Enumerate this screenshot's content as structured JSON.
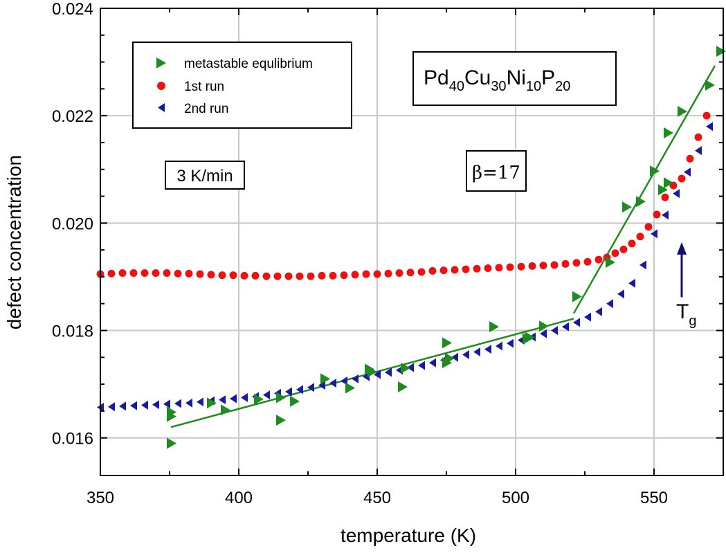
{
  "chart_data": {
    "type": "scatter",
    "title": "",
    "xlabel": "temperature (K)",
    "ylabel": "defect concentration",
    "xlim": [
      350,
      575
    ],
    "ylim": [
      0.0153,
      0.024
    ],
    "x_ticks": [
      350,
      400,
      450,
      500,
      550
    ],
    "x_tick_labels": [
      "350",
      "400",
      "450",
      "500",
      "550"
    ],
    "y_ticks": [
      0.016,
      0.018,
      0.02,
      0.022,
      0.024
    ],
    "y_tick_labels": [
      "0.016",
      "0.018",
      "0.020",
      "0.022",
      "0.024"
    ],
    "grid": true,
    "legend_position": "top-left",
    "colors": {
      "metastable": "#1e8c1e",
      "run1": "#ee1111",
      "run2": "#1a1aa0",
      "tg_arrow": "#12126e"
    },
    "series": [
      {
        "name": "metastable equlibrium",
        "marker": "triangle-right",
        "color": "#1e8c1e",
        "points": [
          [
            375.5,
            0.0159
          ],
          [
            375.5,
            0.0164
          ],
          [
            375.5,
            0.01648
          ],
          [
            390,
            0.01665
          ],
          [
            395,
            0.01652
          ],
          [
            407,
            0.01672
          ],
          [
            415,
            0.01633
          ],
          [
            415,
            0.01675
          ],
          [
            420,
            0.01668
          ],
          [
            431,
            0.0171
          ],
          [
            440,
            0.01693
          ],
          [
            447,
            0.01728
          ],
          [
            448,
            0.01723
          ],
          [
            459,
            0.01695
          ],
          [
            460,
            0.0173
          ],
          [
            475,
            0.0174
          ],
          [
            475,
            0.01777
          ],
          [
            476,
            0.01748
          ],
          [
            492,
            0.01807
          ],
          [
            504,
            0.01785
          ],
          [
            505,
            0.01787
          ],
          [
            510,
            0.01808
          ],
          [
            522,
            0.01863
          ],
          [
            534,
            0.01927
          ],
          [
            540,
            0.0203
          ],
          [
            545,
            0.0204
          ],
          [
            550,
            0.02097
          ],
          [
            553,
            0.02062
          ],
          [
            555,
            0.02075
          ],
          [
            555,
            0.02168
          ],
          [
            560,
            0.02208
          ],
          [
            570,
            0.02257
          ],
          [
            574,
            0.0232
          ]
        ],
        "fit_lines": [
          {
            "from": [
              375.5,
              0.0162
            ],
            "to": [
              521,
              0.01822
            ]
          },
          {
            "from": [
              521,
              0.01832
            ],
            "to": [
              572,
              0.02293
            ]
          }
        ]
      },
      {
        "name": "1st run",
        "marker": "circle",
        "color": "#ee1111",
        "points": [
          [
            350,
            0.01905
          ],
          [
            354,
            0.01906
          ],
          [
            358,
            0.01907
          ],
          [
            362,
            0.01907
          ],
          [
            366,
            0.01907
          ],
          [
            370,
            0.01907
          ],
          [
            374,
            0.01907
          ],
          [
            378,
            0.01906
          ],
          [
            382,
            0.01906
          ],
          [
            386,
            0.01905
          ],
          [
            390,
            0.01904
          ],
          [
            394,
            0.01903
          ],
          [
            398,
            0.01903
          ],
          [
            402,
            0.01902
          ],
          [
            406,
            0.01902
          ],
          [
            410,
            0.01901
          ],
          [
            414,
            0.01901
          ],
          [
            418,
            0.01901
          ],
          [
            422,
            0.01901
          ],
          [
            426,
            0.01901
          ],
          [
            430,
            0.01902
          ],
          [
            434,
            0.01902
          ],
          [
            438,
            0.01903
          ],
          [
            442,
            0.01904
          ],
          [
            446,
            0.01905
          ],
          [
            450,
            0.01905
          ],
          [
            454,
            0.01906
          ],
          [
            458,
            0.01907
          ],
          [
            462,
            0.01908
          ],
          [
            466,
            0.01909
          ],
          [
            470,
            0.01911
          ],
          [
            474,
            0.01912
          ],
          [
            478,
            0.01913
          ],
          [
            482,
            0.01914
          ],
          [
            486,
            0.01915
          ],
          [
            490,
            0.01916
          ],
          [
            494,
            0.01917
          ],
          [
            498,
            0.01918
          ],
          [
            502,
            0.01919
          ],
          [
            506,
            0.0192
          ],
          [
            510,
            0.01921
          ],
          [
            514,
            0.01922
          ],
          [
            518,
            0.01924
          ],
          [
            522,
            0.01926
          ],
          [
            526,
            0.01928
          ],
          [
            530,
            0.01932
          ],
          [
            533,
            0.01936
          ],
          [
            536,
            0.01944
          ],
          [
            539,
            0.01951
          ],
          [
            542,
            0.01962
          ],
          [
            545,
            0.01975
          ],
          [
            548,
            0.01993
          ],
          [
            551,
            0.02016
          ],
          [
            554,
            0.02048
          ],
          [
            557,
            0.0207
          ],
          [
            560,
            0.02083
          ],
          [
            563,
            0.0212
          ],
          [
            566,
            0.0216
          ],
          [
            569,
            0.022
          ]
        ]
      },
      {
        "name": "2nd run",
        "marker": "triangle-left",
        "color": "#1a1aa0",
        "points": [
          [
            350,
            0.01657
          ],
          [
            354,
            0.01658
          ],
          [
            358,
            0.01659
          ],
          [
            362,
            0.0166
          ],
          [
            366,
            0.01661
          ],
          [
            370,
            0.01662
          ],
          [
            374,
            0.01663
          ],
          [
            378,
            0.01664
          ],
          [
            382,
            0.01665
          ],
          [
            386,
            0.01667
          ],
          [
            390,
            0.01669
          ],
          [
            394,
            0.01671
          ],
          [
            398,
            0.01673
          ],
          [
            402,
            0.01675
          ],
          [
            406,
            0.01677
          ],
          [
            410,
            0.0168
          ],
          [
            414,
            0.01683
          ],
          [
            418,
            0.01686
          ],
          [
            422,
            0.0169
          ],
          [
            426,
            0.01694
          ],
          [
            430,
            0.01698
          ],
          [
            434,
            0.01702
          ],
          [
            438,
            0.01706
          ],
          [
            442,
            0.0171
          ],
          [
            446,
            0.01714
          ],
          [
            450,
            0.01718
          ],
          [
            454,
            0.01722
          ],
          [
            458,
            0.01726
          ],
          [
            462,
            0.01731
          ],
          [
            466,
            0.01735
          ],
          [
            470,
            0.0174
          ],
          [
            474,
            0.01745
          ],
          [
            478,
            0.0175
          ],
          [
            482,
            0.01755
          ],
          [
            486,
            0.0176
          ],
          [
            490,
            0.01765
          ],
          [
            494,
            0.01771
          ],
          [
            498,
            0.01776
          ],
          [
            502,
            0.01782
          ],
          [
            506,
            0.01788
          ],
          [
            510,
            0.01794
          ],
          [
            514,
            0.018
          ],
          [
            518,
            0.01807
          ],
          [
            522,
            0.01815
          ],
          [
            526,
            0.01825
          ],
          [
            530,
            0.01835
          ],
          [
            534,
            0.0185
          ],
          [
            538,
            0.01868
          ],
          [
            542,
            0.01888
          ],
          [
            546,
            0.01922
          ],
          [
            550,
            0.0198
          ],
          [
            554,
            0.02015
          ],
          [
            558,
            0.02055
          ],
          [
            562,
            0.02095
          ],
          [
            566,
            0.02135
          ],
          [
            570,
            0.0218
          ]
        ]
      }
    ],
    "annotations": {
      "formula": {
        "parts": [
          {
            "text": "Pd",
            "sub": false
          },
          {
            "text": "40",
            "sub": true
          },
          {
            "text": "Cu",
            "sub": false
          },
          {
            "text": "30",
            "sub": true
          },
          {
            "text": "Ni",
            "sub": false
          },
          {
            "text": "10",
            "sub": true
          },
          {
            "text": "P",
            "sub": false
          },
          {
            "text": "20",
            "sub": true
          }
        ]
      },
      "rate_label": "3 K/min",
      "beta_label": "β=17",
      "tg_label": "T",
      "tg_sub": "g",
      "tg_arrow": {
        "x": 560,
        "y_from": 0.01862,
        "y_to": 0.01962
      }
    }
  }
}
